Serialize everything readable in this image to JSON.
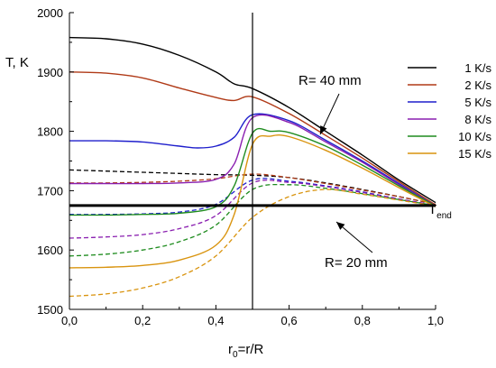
{
  "chart_data": {
    "type": "line",
    "x_label": {
      "main": "r",
      "sub": "0",
      "rest": "=r/R"
    },
    "y_label": "T, K",
    "xlim": [
      0.0,
      1.0
    ],
    "ylim": [
      1500,
      2000
    ],
    "x_ticks": [
      0.0,
      0.2,
      0.4,
      0.6,
      0.8,
      1.0
    ],
    "x_tick_labels": [
      "0,0",
      "0,2",
      "0,4",
      "0,6",
      "0,8",
      "1,0"
    ],
    "y_ticks": [
      1500,
      1600,
      1700,
      1800,
      1900,
      2000
    ],
    "y_tick_labels": [
      "1500",
      "1600",
      "1700",
      "1800",
      "1900",
      "2000"
    ],
    "grid": false,
    "legend_position": "top-right",
    "annotations": {
      "r40": "R= 40 mm",
      "r20": "R= 20 mm",
      "tend_main": "T",
      "tend_sub": "end"
    },
    "reference_lines": {
      "vertical_x": 0.5,
      "t_end": 1675
    },
    "series": [
      {
        "name": "1 K/s",
        "color": "#000000",
        "solid": [
          [
            0.0,
            1958
          ],
          [
            0.1,
            1956
          ],
          [
            0.2,
            1947
          ],
          [
            0.3,
            1928
          ],
          [
            0.4,
            1900
          ],
          [
            0.45,
            1880
          ],
          [
            0.5,
            1872
          ],
          [
            0.6,
            1840
          ],
          [
            0.7,
            1800
          ],
          [
            0.8,
            1760
          ],
          [
            0.9,
            1718
          ],
          [
            1.0,
            1680
          ]
        ],
        "dashed": [
          [
            0.0,
            1735
          ],
          [
            0.1,
            1733
          ],
          [
            0.2,
            1731
          ],
          [
            0.3,
            1729
          ],
          [
            0.4,
            1727
          ],
          [
            0.5,
            1726
          ],
          [
            0.6,
            1722
          ],
          [
            0.7,
            1713
          ],
          [
            0.8,
            1702
          ],
          [
            0.9,
            1690
          ],
          [
            1.0,
            1677
          ]
        ]
      },
      {
        "name": "2 K/s",
        "color": "#b03a17",
        "solid": [
          [
            0.0,
            1900
          ],
          [
            0.1,
            1898
          ],
          [
            0.2,
            1890
          ],
          [
            0.3,
            1873
          ],
          [
            0.4,
            1857
          ],
          [
            0.45,
            1852
          ],
          [
            0.5,
            1858
          ],
          [
            0.6,
            1830
          ],
          [
            0.7,
            1793
          ],
          [
            0.8,
            1755
          ],
          [
            0.9,
            1715
          ],
          [
            1.0,
            1676
          ]
        ],
        "dashed": [
          [
            0.0,
            1713
          ],
          [
            0.1,
            1713
          ],
          [
            0.2,
            1714
          ],
          [
            0.3,
            1716
          ],
          [
            0.4,
            1720
          ],
          [
            0.5,
            1728
          ],
          [
            0.6,
            1722
          ],
          [
            0.7,
            1712
          ],
          [
            0.8,
            1701
          ],
          [
            0.9,
            1690
          ],
          [
            1.0,
            1677
          ]
        ]
      },
      {
        "name": "5 K/s",
        "color": "#1f1fcc",
        "solid": [
          [
            0.0,
            1784
          ],
          [
            0.1,
            1784
          ],
          [
            0.2,
            1782
          ],
          [
            0.3,
            1775
          ],
          [
            0.35,
            1772
          ],
          [
            0.4,
            1775
          ],
          [
            0.45,
            1790
          ],
          [
            0.5,
            1828
          ],
          [
            0.6,
            1818
          ],
          [
            0.7,
            1785
          ],
          [
            0.8,
            1750
          ],
          [
            0.9,
            1712
          ],
          [
            1.0,
            1674
          ]
        ],
        "dashed": [
          [
            0.0,
            1660
          ],
          [
            0.1,
            1660
          ],
          [
            0.2,
            1661
          ],
          [
            0.3,
            1664
          ],
          [
            0.4,
            1677
          ],
          [
            0.5,
            1718
          ],
          [
            0.6,
            1716
          ],
          [
            0.7,
            1708
          ],
          [
            0.8,
            1698
          ],
          [
            0.9,
            1686
          ],
          [
            1.0,
            1675
          ]
        ]
      },
      {
        "name": "8 K/s",
        "color": "#8a1fb0",
        "solid": [
          [
            0.0,
            1712
          ],
          [
            0.1,
            1712
          ],
          [
            0.2,
            1712
          ],
          [
            0.3,
            1713
          ],
          [
            0.4,
            1719
          ],
          [
            0.45,
            1745
          ],
          [
            0.5,
            1823
          ],
          [
            0.6,
            1815
          ],
          [
            0.7,
            1782
          ],
          [
            0.8,
            1748
          ],
          [
            0.9,
            1710
          ],
          [
            1.0,
            1674
          ]
        ],
        "dashed": [
          [
            0.0,
            1620
          ],
          [
            0.1,
            1622
          ],
          [
            0.2,
            1626
          ],
          [
            0.3,
            1636
          ],
          [
            0.4,
            1658
          ],
          [
            0.5,
            1713
          ],
          [
            0.6,
            1714
          ],
          [
            0.7,
            1707
          ],
          [
            0.8,
            1697
          ],
          [
            0.9,
            1686
          ],
          [
            1.0,
            1675
          ]
        ]
      },
      {
        "name": "10 K/s",
        "color": "#1f8c1f",
        "solid": [
          [
            0.0,
            1659
          ],
          [
            0.1,
            1659
          ],
          [
            0.2,
            1660
          ],
          [
            0.3,
            1662
          ],
          [
            0.4,
            1673
          ],
          [
            0.45,
            1708
          ],
          [
            0.5,
            1797
          ],
          [
            0.55,
            1800
          ],
          [
            0.6,
            1798
          ],
          [
            0.7,
            1775
          ],
          [
            0.8,
            1743
          ],
          [
            0.9,
            1708
          ],
          [
            1.0,
            1674
          ]
        ],
        "dashed": [
          [
            0.0,
            1590
          ],
          [
            0.1,
            1593
          ],
          [
            0.2,
            1600
          ],
          [
            0.3,
            1614
          ],
          [
            0.4,
            1642
          ],
          [
            0.5,
            1702
          ],
          [
            0.6,
            1710
          ],
          [
            0.7,
            1704
          ],
          [
            0.8,
            1695
          ],
          [
            0.9,
            1685
          ],
          [
            1.0,
            1675
          ]
        ]
      },
      {
        "name": "15 K/s",
        "color": "#d9940f",
        "solid": [
          [
            0.0,
            1570
          ],
          [
            0.1,
            1571
          ],
          [
            0.2,
            1574
          ],
          [
            0.3,
            1583
          ],
          [
            0.4,
            1608
          ],
          [
            0.45,
            1660
          ],
          [
            0.5,
            1778
          ],
          [
            0.55,
            1792
          ],
          [
            0.6,
            1791
          ],
          [
            0.7,
            1768
          ],
          [
            0.8,
            1738
          ],
          [
            0.9,
            1705
          ],
          [
            1.0,
            1673
          ]
        ],
        "dashed": [
          [
            0.0,
            1522
          ],
          [
            0.1,
            1526
          ],
          [
            0.2,
            1536
          ],
          [
            0.3,
            1555
          ],
          [
            0.4,
            1590
          ],
          [
            0.5,
            1655
          ],
          [
            0.6,
            1690
          ],
          [
            0.7,
            1702
          ],
          [
            0.8,
            1694
          ],
          [
            0.9,
            1684
          ],
          [
            1.0,
            1674
          ]
        ]
      }
    ]
  }
}
